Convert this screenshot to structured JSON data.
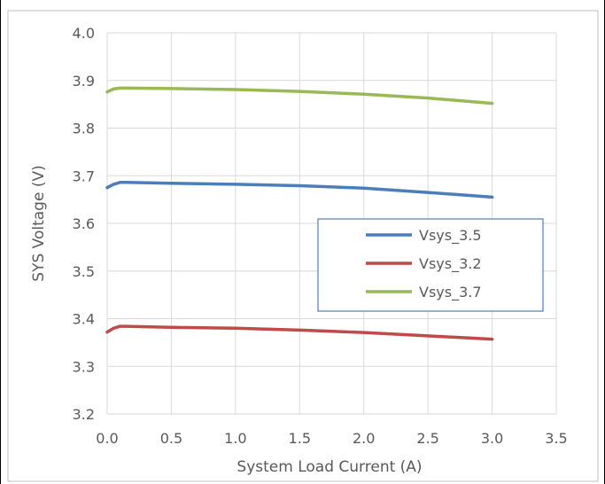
{
  "chart_data": {
    "type": "line",
    "title": "",
    "xlabel": "System Load Current (A)",
    "ylabel": "SYS Voltage (V)",
    "xlim": [
      0,
      3.5
    ],
    "ylim": [
      3.2,
      4.0
    ],
    "xticks": [
      "0.0",
      "0.5",
      "1.0",
      "1.5",
      "2.0",
      "2.5",
      "3.0",
      "3.5"
    ],
    "yticks": [
      "3.2",
      "3.3",
      "3.4",
      "3.5",
      "3.6",
      "3.7",
      "3.8",
      "3.9",
      "4.0"
    ],
    "grid": true,
    "legend_position": "right",
    "series": [
      {
        "name": "Vsys_3.5",
        "color": "#4a7ebb",
        "x": [
          0,
          0.05,
          0.1,
          0.15,
          0.5,
          1.0,
          1.5,
          2.0,
          2.5,
          3.0
        ],
        "y": [
          3.675,
          3.682,
          3.686,
          3.686,
          3.684,
          3.682,
          3.679,
          3.674,
          3.665,
          3.655
        ]
      },
      {
        "name": "Vsys_3.2",
        "color": "#be4b48",
        "x": [
          0,
          0.05,
          0.1,
          0.15,
          0.5,
          1.0,
          1.5,
          2.0,
          2.5,
          3.0
        ],
        "y": [
          3.372,
          3.38,
          3.384,
          3.384,
          3.382,
          3.38,
          3.376,
          3.371,
          3.364,
          3.357
        ]
      },
      {
        "name": "Vsys_3.7",
        "color": "#98b954",
        "x": [
          0,
          0.05,
          0.1,
          0.15,
          0.5,
          1.0,
          1.5,
          2.0,
          2.5,
          3.0
        ],
        "y": [
          3.876,
          3.882,
          3.884,
          3.884,
          3.883,
          3.881,
          3.877,
          3.871,
          3.863,
          3.852
        ]
      }
    ]
  }
}
